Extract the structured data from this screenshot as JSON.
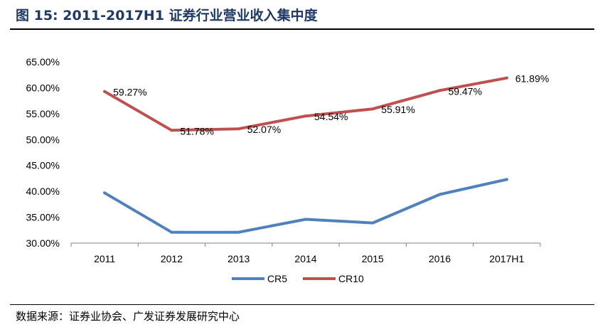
{
  "title": "图 15:  2011-2017H1 证券行业营业收入集中度",
  "source": "数据来源：证券业协会、广发证券发展研究中心",
  "chart_data": {
    "type": "line",
    "categories": [
      "2011",
      "2012",
      "2013",
      "2014",
      "2015",
      "2016",
      "2017H1"
    ],
    "series": [
      {
        "name": "CR5",
        "color": "#4f81bd",
        "values": [
          39.7,
          32.1,
          32.1,
          34.6,
          33.9,
          39.4,
          42.3
        ],
        "labels": []
      },
      {
        "name": "CR10",
        "color": "#c0504d",
        "values": [
          59.27,
          51.78,
          52.07,
          54.54,
          55.91,
          59.47,
          61.89
        ],
        "labels": [
          "59.27%",
          "51.78%",
          "52.07%",
          "54.54%",
          "55.91%",
          "59.47%",
          "61.89%"
        ]
      }
    ],
    "yticks": [
      "30.00%",
      "35.00%",
      "40.00%",
      "45.00%",
      "50.00%",
      "55.00%",
      "60.00%",
      "65.00%"
    ],
    "ylim": [
      30,
      65
    ],
    "grid": false,
    "legend": "bottom"
  }
}
